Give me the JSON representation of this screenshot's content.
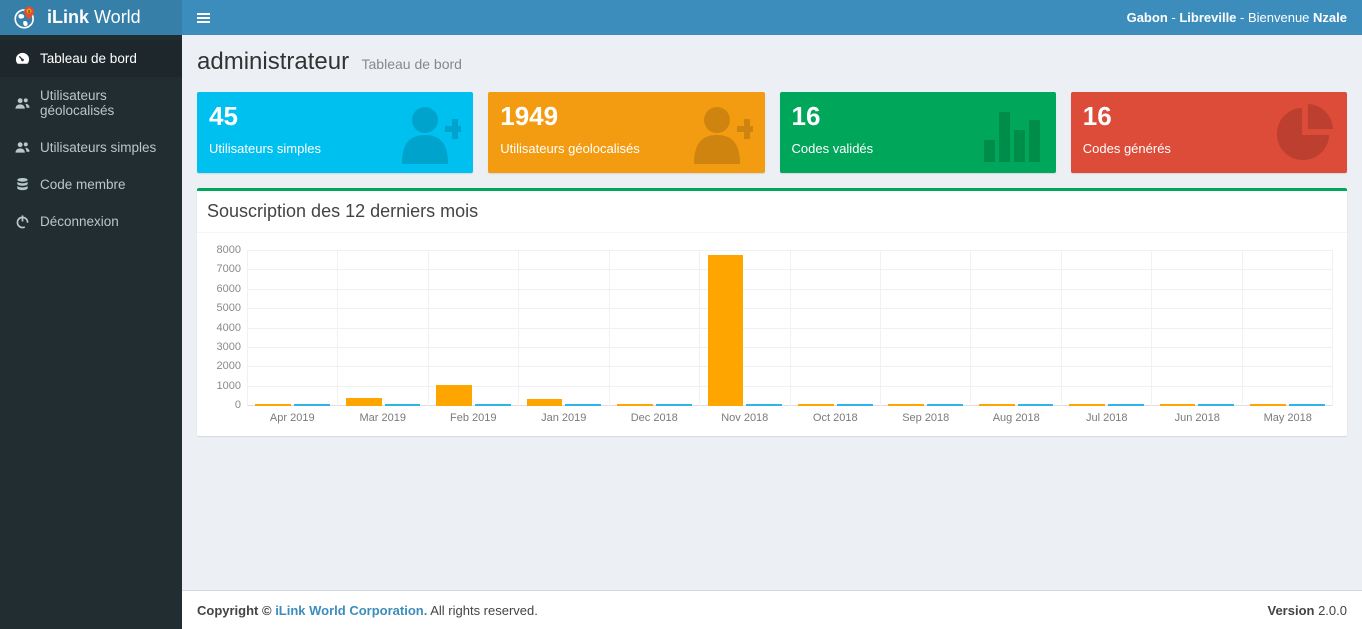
{
  "header": {
    "brand_bold": "iLink",
    "brand_regular": " World",
    "right": {
      "country": "Gabon",
      "sep1": " - ",
      "city": "Libreville",
      "sep2": " - ",
      "greeting": "Bienvenue ",
      "name": "Nzale"
    }
  },
  "sidebar": {
    "items": [
      {
        "label": "Tableau de bord",
        "icon": "dashboard-icon",
        "active": true
      },
      {
        "label": "Utilisateurs géolocalisés",
        "icon": "users-icon",
        "active": false
      },
      {
        "label": "Utilisateurs simples",
        "icon": "users-icon",
        "active": false
      },
      {
        "label": "Code membre",
        "icon": "database-icon",
        "active": false
      },
      {
        "label": "Déconnexion",
        "icon": "power-icon",
        "active": false
      }
    ]
  },
  "page": {
    "title": "administrateur",
    "subtitle": "Tableau de bord"
  },
  "cards": [
    {
      "value": "45",
      "label": "Utilisateurs simples",
      "color": "#00c0ef",
      "icon": "user-plus-icon"
    },
    {
      "value": "1949",
      "label": "Utilisateurs géolocalisés",
      "color": "#f39c12",
      "icon": "user-plus-icon"
    },
    {
      "value": "16",
      "label": "Codes validés",
      "color": "#00a65a",
      "icon": "bar-chart-icon"
    },
    {
      "value": "16",
      "label": "Codes générés",
      "color": "#dd4b39",
      "icon": "pie-chart-icon"
    }
  ],
  "chart_box": {
    "title": "Souscription des 12 derniers mois",
    "accent_color": "#00a65a"
  },
  "chart_data": {
    "type": "bar",
    "title": "Souscription des 12 derniers mois",
    "categories": [
      "Apr 2019",
      "Mar 2019",
      "Feb 2019",
      "Jan 2019",
      "Dec 2018",
      "Nov 2018",
      "Oct 2018",
      "Sep 2018",
      "Aug 2018",
      "Jul 2018",
      "Jun 2018",
      "May 2018"
    ],
    "series": [
      {
        "name": "series-1",
        "color": "#ffa500",
        "values": [
          100,
          400,
          1100,
          350,
          100,
          7800,
          100,
          100,
          100,
          100,
          100,
          100
        ]
      },
      {
        "name": "series-2",
        "color": "#2eb5e8",
        "values": [
          100,
          100,
          100,
          100,
          100,
          100,
          100,
          100,
          100,
          100,
          100,
          100
        ]
      }
    ],
    "xlabel": "",
    "ylabel": "",
    "ylim": [
      0,
      8000
    ],
    "ytick_step": 1000,
    "grid": true,
    "legend": "none"
  },
  "footer": {
    "copyright_prefix": "Copyright © ",
    "company": "iLink World Corporation.",
    "rights": " All rights reserved.",
    "version_label": "Version",
    "version_value": " 2.0.0"
  }
}
